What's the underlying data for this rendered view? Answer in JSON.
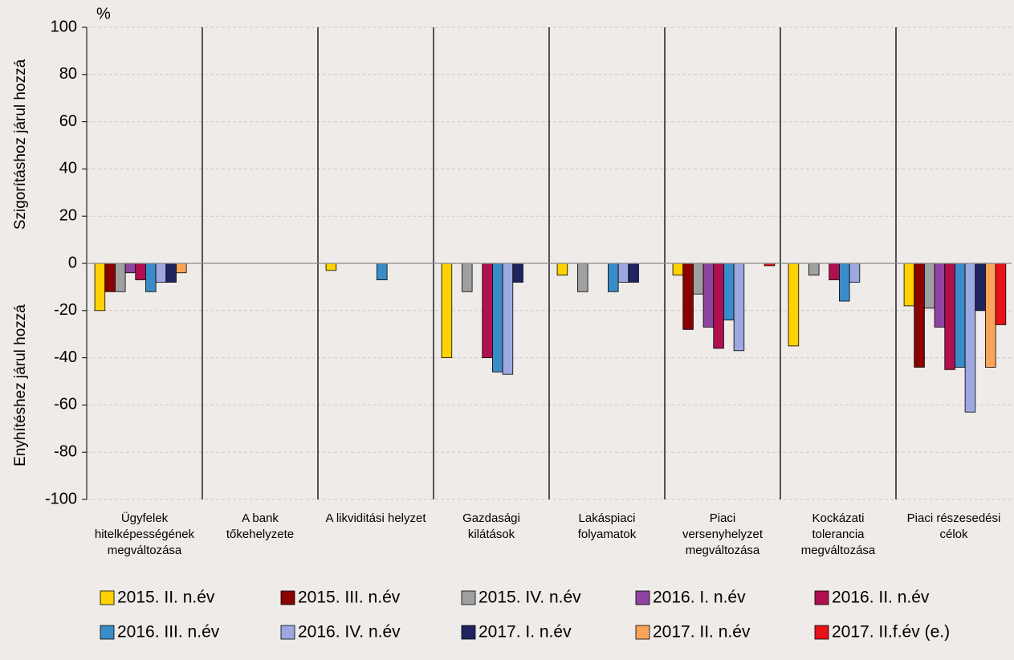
{
  "chart_data": {
    "type": "bar",
    "unit": "%",
    "y_label_upper": "Szigorításhoz járul hozzá",
    "y_label_lower": "Enyhítéshez járul hozzá",
    "categories": [
      "Ügyfelek\nhitelképességének\nmegváltozása",
      "A bank\ntőkehelyzete",
      "A likviditási helyzet",
      "Gazdasági\nkilátások",
      "Lakáspiaci\nfolyamatok",
      "Piaci\nversenyhelyzet\nmegváltozása",
      "Kockázati\ntolerancia\nmegváltozása",
      "Piaci részesedési\ncélok"
    ],
    "series": [
      {
        "name": "2015. II. n.év",
        "color": "#FFD200",
        "values": [
          -20,
          0,
          -3,
          -40,
          -5,
          -5,
          -35,
          -18
        ]
      },
      {
        "name": "2015. III. n.év",
        "color": "#8B0000",
        "values": [
          -12,
          0,
          0,
          0,
          0,
          -28,
          0,
          -44
        ]
      },
      {
        "name": "2015. IV. n.év",
        "color": "#A0A0A0",
        "values": [
          -12,
          0,
          0,
          -12,
          -12,
          -13,
          -5,
          -19
        ]
      },
      {
        "name": "2016. I. n.év",
        "color": "#8E44A0",
        "values": [
          -4,
          0,
          0,
          0,
          0,
          -27,
          0,
          -27
        ]
      },
      {
        "name": "2016. II. n.év",
        "color": "#B0104F",
        "values": [
          -7,
          0,
          0,
          -40,
          0,
          -36,
          -7,
          -45
        ]
      },
      {
        "name": "2016. III. n.év",
        "color": "#3A8CC8",
        "values": [
          -12,
          0,
          -7,
          -46,
          -12,
          -24,
          -16,
          -44
        ]
      },
      {
        "name": "2016. IV. n.év",
        "color": "#9DA8E0",
        "values": [
          -8,
          0,
          0,
          -47,
          -8,
          -37,
          -8,
          -63
        ]
      },
      {
        "name": "2017. I. n.év",
        "color": "#1F2460",
        "values": [
          -8,
          0,
          0,
          -8,
          -8,
          0,
          0,
          -20
        ]
      },
      {
        "name": "2017. II. n.év",
        "color": "#F9A45A",
        "values": [
          -4,
          0,
          0,
          0,
          0,
          0,
          0,
          -44
        ]
      },
      {
        "name": "2017. II.f.év (e.)",
        "color": "#E8121A",
        "values": [
          null,
          0,
          0,
          0,
          0,
          -1,
          0,
          -26
        ]
      }
    ],
    "ylim": [
      -100,
      100
    ],
    "yticks": [
      -100,
      -80,
      -60,
      -40,
      -20,
      0,
      20,
      40,
      60,
      80,
      100
    ],
    "grid": true
  }
}
